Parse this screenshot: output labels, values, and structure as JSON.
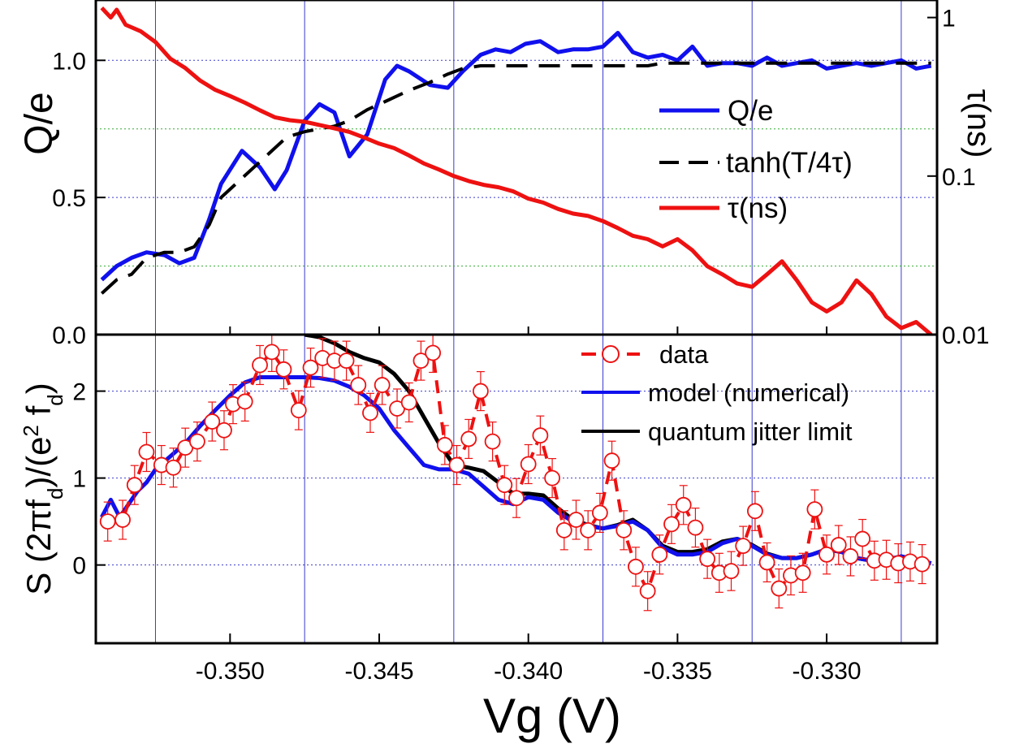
{
  "chart_data": [
    {
      "type": "line",
      "panel": "top",
      "xlim": [
        -0.3545,
        -0.3263
      ],
      "ylim": [
        0.0,
        1.22
      ],
      "ylabel": "Q/e",
      "y2label": "τ(ns)",
      "y2_scale": "log",
      "y2lim": [
        0.01,
        1.29
      ],
      "yticks": [
        "0.0",
        "0.5",
        "1.0"
      ],
      "y2ticks": [
        "0.01",
        "0.1",
        "1"
      ],
      "grid": true,
      "legend": {
        "position": "center-right",
        "entries": [
          "Q/e",
          "tanh(T/4τ)",
          "τ(ns)"
        ]
      },
      "series": [
        {
          "name": "Q/e",
          "axis": "left",
          "color": "#1010ee",
          "style": "solid",
          "x": [
            -0.3543,
            -0.3538,
            -0.3533,
            -0.3528,
            -0.3522,
            -0.3517,
            -0.3512,
            -0.3507,
            -0.3503,
            -0.3496,
            -0.349,
            -0.3485,
            -0.3481,
            -0.3475,
            -0.347,
            -0.3465,
            -0.346,
            -0.3454,
            -0.3448,
            -0.3444,
            -0.344,
            -0.3433,
            -0.3427,
            -0.3422,
            -0.3416,
            -0.3411,
            -0.3406,
            -0.3401,
            -0.3396,
            -0.339,
            -0.3385,
            -0.338,
            -0.3375,
            -0.337,
            -0.3365,
            -0.336,
            -0.3355,
            -0.335,
            -0.3345,
            -0.334,
            -0.3335,
            -0.333,
            -0.3325,
            -0.332,
            -0.3315,
            -0.331,
            -0.3305,
            -0.33,
            -0.3295,
            -0.329,
            -0.3285,
            -0.328,
            -0.3275,
            -0.327,
            -0.3265
          ],
          "values": [
            0.2,
            0.25,
            0.28,
            0.3,
            0.29,
            0.26,
            0.28,
            0.42,
            0.55,
            0.67,
            0.61,
            0.53,
            0.6,
            0.78,
            0.84,
            0.81,
            0.65,
            0.73,
            0.93,
            0.98,
            0.96,
            0.91,
            0.9,
            0.96,
            1.02,
            1.04,
            1.03,
            1.06,
            1.07,
            1.03,
            1.04,
            1.04,
            1.05,
            1.1,
            1.03,
            1.01,
            1.02,
            1.0,
            1.05,
            0.98,
            0.99,
            0.99,
            0.98,
            1.01,
            0.98,
            0.99,
            1.0,
            0.97,
            0.98,
            0.99,
            0.98,
            0.99,
            1.0,
            0.97,
            0.98
          ]
        },
        {
          "name": "tanh(T/4τ)",
          "axis": "left",
          "color": "#000000",
          "style": "dashed",
          "x": [
            -0.3543,
            -0.3538,
            -0.3533,
            -0.3528,
            -0.3522,
            -0.3517,
            -0.3512,
            -0.3507,
            -0.3503,
            -0.3496,
            -0.349,
            -0.3485,
            -0.3481,
            -0.3475,
            -0.347,
            -0.3465,
            -0.346,
            -0.3454,
            -0.3448,
            -0.3444,
            -0.344,
            -0.3433,
            -0.3427,
            -0.3422,
            -0.3416,
            -0.3411,
            -0.3406,
            -0.3401,
            -0.3396,
            -0.339,
            -0.3385,
            -0.338,
            -0.3375,
            -0.337,
            -0.3365,
            -0.336,
            -0.3355,
            -0.335,
            -0.3345,
            -0.334,
            -0.3335,
            -0.333,
            -0.3325,
            -0.332,
            -0.3315,
            -0.331,
            -0.3305,
            -0.33,
            -0.3295,
            -0.329,
            -0.3285,
            -0.328,
            -0.3275,
            -0.327,
            -0.3265
          ],
          "values": [
            0.15,
            0.2,
            0.22,
            0.28,
            0.3,
            0.3,
            0.32,
            0.4,
            0.5,
            0.57,
            0.63,
            0.68,
            0.72,
            0.74,
            0.75,
            0.76,
            0.78,
            0.82,
            0.85,
            0.87,
            0.89,
            0.92,
            0.95,
            0.97,
            0.98,
            0.98,
            0.98,
            0.98,
            0.98,
            0.98,
            0.98,
            0.98,
            0.98,
            0.98,
            0.98,
            0.98,
            0.99,
            0.99,
            0.99,
            0.99,
            0.99,
            0.99,
            0.99,
            0.99,
            0.99,
            0.99,
            0.99,
            0.99,
            0.99,
            0.99,
            0.99,
            0.99,
            0.99,
            0.99,
            0.99
          ]
        },
        {
          "name": "τ(ns)",
          "axis": "right",
          "color": "#ee1111",
          "style": "solid",
          "x": [
            -0.3543,
            -0.354,
            -0.3538,
            -0.3535,
            -0.353,
            -0.3525,
            -0.352,
            -0.3515,
            -0.351,
            -0.3505,
            -0.35,
            -0.3495,
            -0.349,
            -0.3485,
            -0.348,
            -0.3475,
            -0.347,
            -0.3465,
            -0.346,
            -0.3455,
            -0.345,
            -0.3445,
            -0.344,
            -0.3435,
            -0.343,
            -0.3425,
            -0.342,
            -0.3415,
            -0.341,
            -0.3405,
            -0.34,
            -0.3395,
            -0.339,
            -0.3385,
            -0.338,
            -0.3375,
            -0.337,
            -0.3365,
            -0.336,
            -0.3355,
            -0.335,
            -0.3345,
            -0.334,
            -0.3335,
            -0.333,
            -0.3325,
            -0.332,
            -0.3315,
            -0.331,
            -0.3305,
            -0.33,
            -0.3295,
            -0.329,
            -0.3285,
            -0.328,
            -0.3275,
            -0.327,
            -0.3265
          ],
          "values": [
            1.15,
            1.0,
            1.12,
            0.9,
            0.82,
            0.7,
            0.55,
            0.48,
            0.4,
            0.35,
            0.32,
            0.29,
            0.26,
            0.235,
            0.225,
            0.22,
            0.21,
            0.2,
            0.19,
            0.175,
            0.16,
            0.15,
            0.135,
            0.12,
            0.11,
            0.1,
            0.093,
            0.088,
            0.085,
            0.08,
            0.072,
            0.068,
            0.062,
            0.058,
            0.056,
            0.052,
            0.047,
            0.042,
            0.04,
            0.036,
            0.04,
            0.034,
            0.027,
            0.024,
            0.021,
            0.02,
            0.024,
            0.029,
            0.022,
            0.016,
            0.014,
            0.016,
            0.022,
            0.018,
            0.013,
            0.011,
            0.012,
            0.01
          ]
        }
      ]
    },
    {
      "type": "line",
      "panel": "bottom",
      "xlim": [
        -0.3545,
        -0.3263
      ],
      "ylim": [
        -0.9,
        2.65
      ],
      "xlabel": "Vg (V)",
      "ylabel": "S (2πf_d)/(e^2 f_d)",
      "xticks": [
        "-0.350",
        "-0.345",
        "-0.340",
        "-0.335",
        "-0.330"
      ],
      "yticks": [
        "0",
        "1",
        "2"
      ],
      "grid": true,
      "legend": {
        "position": "top-right",
        "entries": [
          "data",
          "model (numerical)",
          "quantum jitter limit"
        ]
      },
      "series": [
        {
          "name": "data",
          "color": "#ee1111",
          "style": "dashed-markers",
          "marker": "open-circle",
          "x": [
            -0.3541,
            -0.3536,
            -0.3532,
            -0.3528,
            -0.3523,
            -0.3519,
            -0.3515,
            -0.3511,
            -0.3506,
            -0.3502,
            -0.3499,
            -0.3495,
            -0.349,
            -0.3486,
            -0.3482,
            -0.3477,
            -0.3473,
            -0.3469,
            -0.3465,
            -0.3461,
            -0.3457,
            -0.3453,
            -0.3449,
            -0.3444,
            -0.344,
            -0.3436,
            -0.3432,
            -0.3428,
            -0.3424,
            -0.342,
            -0.3416,
            -0.3412,
            -0.3408,
            -0.3404,
            -0.34,
            -0.3396,
            -0.3392,
            -0.3388,
            -0.3384,
            -0.338,
            -0.3376,
            -0.3372,
            -0.3368,
            -0.3364,
            -0.336,
            -0.3356,
            -0.3352,
            -0.3348,
            -0.3344,
            -0.334,
            -0.3336,
            -0.3332,
            -0.3328,
            -0.3324,
            -0.332,
            -0.3316,
            -0.3312,
            -0.3308,
            -0.3304,
            -0.33,
            -0.3296,
            -0.3292,
            -0.3288,
            -0.3284,
            -0.328,
            -0.3276,
            -0.3272,
            -0.3268
          ],
          "values": [
            0.5,
            0.52,
            0.92,
            1.3,
            1.15,
            1.12,
            1.35,
            1.42,
            1.65,
            1.55,
            1.85,
            1.88,
            2.3,
            2.45,
            2.25,
            1.78,
            2.27,
            2.38,
            2.35,
            2.35,
            2.07,
            1.75,
            2.07,
            1.8,
            1.87,
            2.35,
            2.44,
            1.38,
            1.15,
            1.45,
            2.0,
            1.42,
            0.92,
            0.77,
            1.16,
            1.49,
            1.0,
            0.4,
            0.52,
            0.4,
            0.6,
            1.2,
            0.4,
            -0.02,
            -0.3,
            0.12,
            0.47,
            0.69,
            0.43,
            0.07,
            -0.09,
            -0.07,
            0.22,
            0.62,
            0.03,
            -0.27,
            -0.12,
            -0.09,
            0.64,
            0.12,
            0.23,
            0.1,
            0.3,
            0.05,
            0.06,
            0.02,
            0.04,
            0.01
          ]
        },
        {
          "name": "model (numerical)",
          "color": "#1010ee",
          "style": "solid",
          "x": [
            -0.3543,
            -0.354,
            -0.3537,
            -0.3534,
            -0.3531,
            -0.3528,
            -0.3525,
            -0.352,
            -0.3515,
            -0.351,
            -0.3505,
            -0.35,
            -0.3495,
            -0.349,
            -0.3485,
            -0.348,
            -0.3475,
            -0.347,
            -0.3465,
            -0.346,
            -0.3455,
            -0.345,
            -0.3445,
            -0.344,
            -0.3435,
            -0.343,
            -0.3425,
            -0.342,
            -0.3415,
            -0.341,
            -0.3405,
            -0.34,
            -0.3395,
            -0.339,
            -0.3385,
            -0.338,
            -0.3375,
            -0.337,
            -0.3365,
            -0.336,
            -0.3355,
            -0.335,
            -0.3345,
            -0.334,
            -0.3335,
            -0.333,
            -0.3325,
            -0.332,
            -0.3315,
            -0.331,
            -0.3305,
            -0.33,
            -0.3295,
            -0.329,
            -0.3285,
            -0.328,
            -0.3275,
            -0.327,
            -0.3265
          ],
          "values": [
            0.55,
            0.75,
            0.55,
            0.7,
            0.85,
            0.95,
            1.1,
            1.25,
            1.4,
            1.6,
            1.78,
            1.95,
            2.1,
            2.16,
            2.16,
            2.16,
            2.16,
            2.15,
            2.12,
            2.05,
            1.95,
            1.8,
            1.55,
            1.35,
            1.15,
            1.1,
            1.1,
            1.05,
            0.9,
            0.75,
            0.7,
            0.78,
            0.75,
            0.6,
            0.5,
            0.45,
            0.42,
            0.45,
            0.5,
            0.4,
            0.2,
            0.12,
            0.12,
            0.15,
            0.25,
            0.3,
            0.22,
            0.12,
            0.08,
            0.08,
            0.12,
            0.18,
            0.15,
            0.08,
            0.05,
            0.06,
            0.1,
            0.06,
            0.02
          ]
        },
        {
          "name": "quantum jitter limit",
          "color": "#000000",
          "style": "solid",
          "x": [
            -0.3475,
            -0.347,
            -0.3465,
            -0.346,
            -0.3455,
            -0.345,
            -0.3445,
            -0.344,
            -0.3435,
            -0.343,
            -0.3425,
            -0.342,
            -0.3415,
            -0.341,
            -0.3405,
            -0.34,
            -0.3395,
            -0.339,
            -0.3385,
            -0.338,
            -0.3375,
            -0.337,
            -0.3365,
            -0.336,
            -0.3355,
            -0.335,
            -0.3345,
            -0.334,
            -0.3335,
            -0.333,
            -0.3325,
            -0.332,
            -0.3315,
            -0.331,
            -0.3305,
            -0.33,
            -0.3295,
            -0.329,
            -0.3285,
            -0.328,
            -0.3275,
            -0.327,
            -0.3265
          ],
          "values": [
            2.65,
            2.62,
            2.55,
            2.45,
            2.38,
            2.33,
            2.2,
            2.0,
            1.7,
            1.4,
            1.15,
            1.12,
            1.08,
            0.95,
            0.82,
            0.82,
            0.8,
            0.65,
            0.52,
            0.46,
            0.42,
            0.46,
            0.52,
            0.4,
            0.22,
            0.15,
            0.15,
            0.18,
            0.27,
            0.3,
            0.23,
            0.13,
            0.08,
            0.08,
            0.12,
            0.18,
            0.15,
            0.08,
            0.05,
            0.06,
            0.1,
            0.06,
            0.02
          ]
        }
      ]
    }
  ]
}
